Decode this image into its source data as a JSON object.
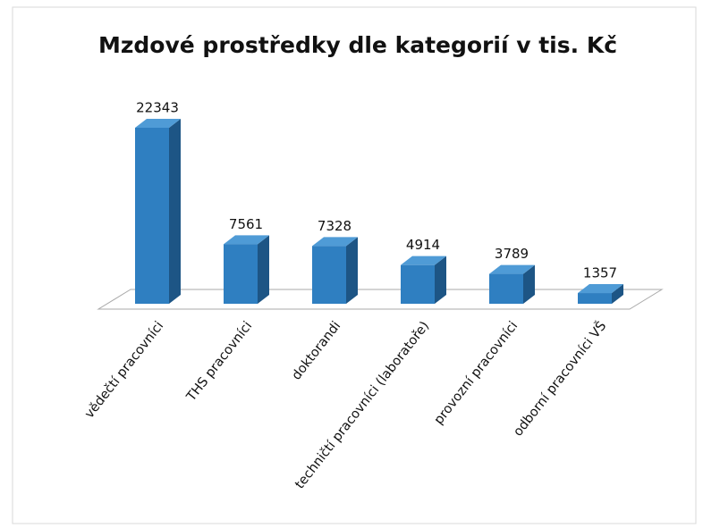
{
  "chart_data": {
    "type": "bar3d",
    "title": "Mzdové prostředky dle kategorií v tis. Kč",
    "categories": [
      "vědečtí pracovníci",
      "THS pracovníci",
      "doktorandi",
      "techničtí pracovníci (laboratoře)",
      "provozní pracovníci",
      "odborní pracovníci VŠ"
    ],
    "values": [
      22343,
      7561,
      7328,
      4914,
      3789,
      1357
    ],
    "color": "#2f7fc1"
  }
}
